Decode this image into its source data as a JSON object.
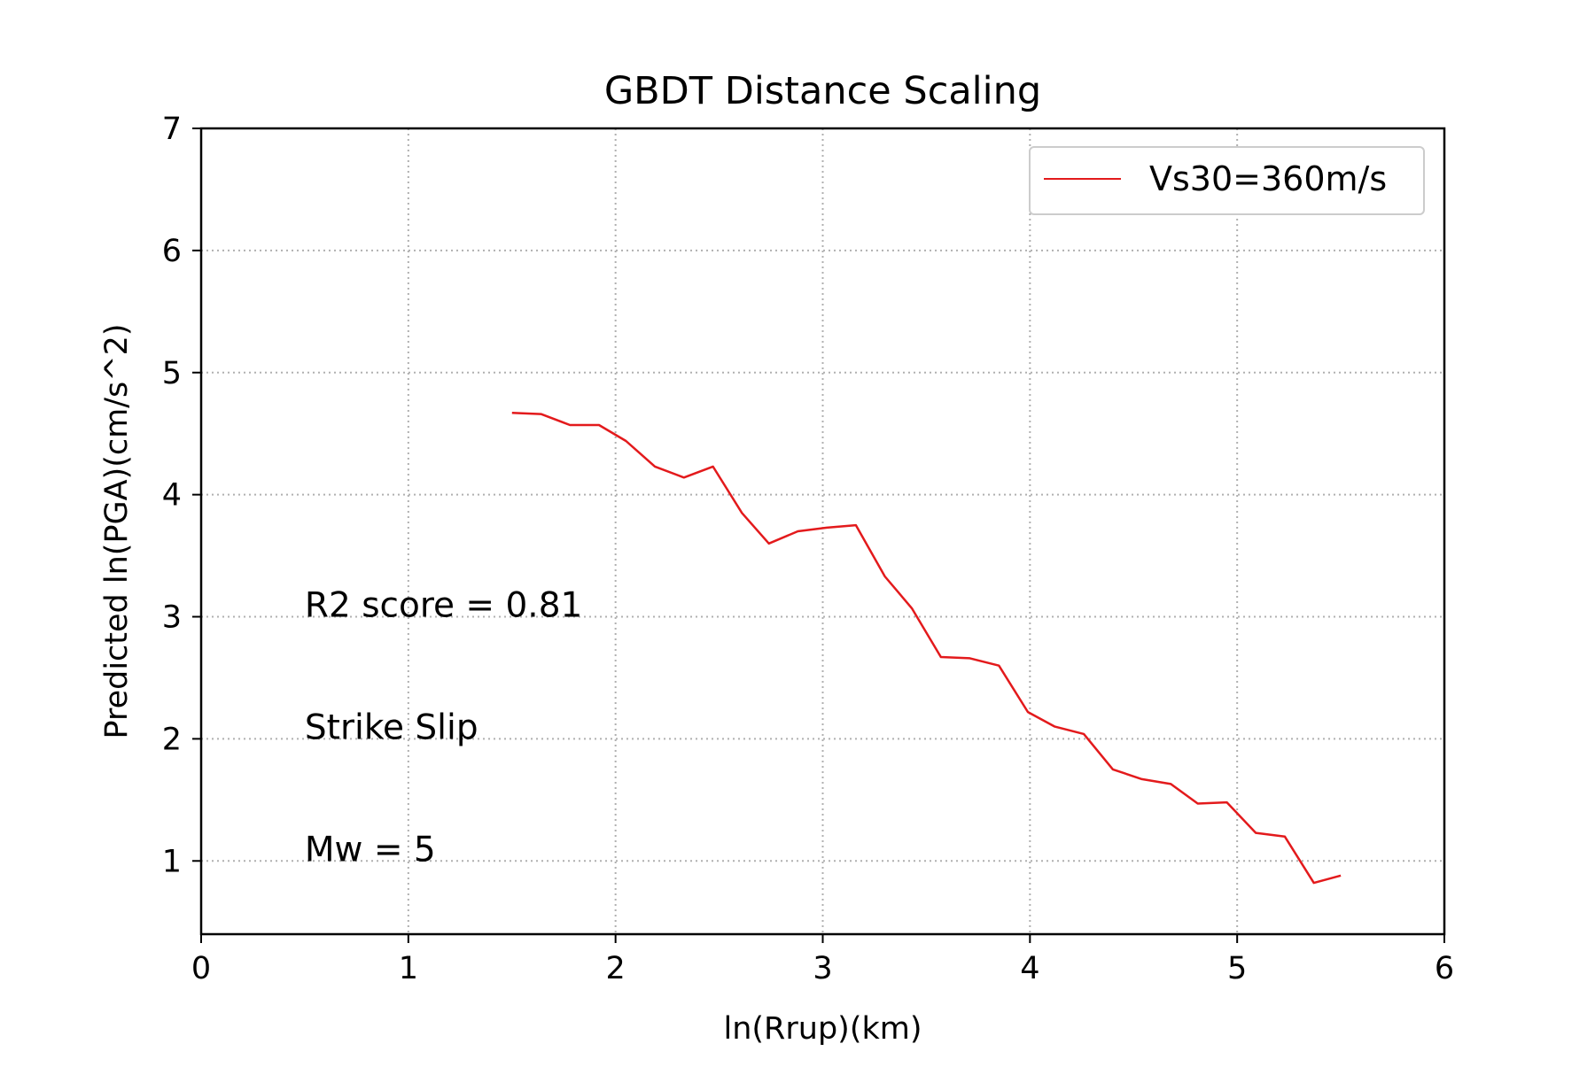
{
  "chart_data": {
    "type": "line",
    "title": "GBDT Distance Scaling",
    "xlabel": "ln(Rrup)(km)",
    "ylabel": "Predicted ln(PGA)(cm/s^2)",
    "xlim": [
      0,
      6
    ],
    "ylim": [
      0.4,
      7
    ],
    "x_ticks": [
      0,
      1,
      2,
      3,
      4,
      5,
      6
    ],
    "y_ticks": [
      1,
      2,
      3,
      4,
      5,
      6,
      7
    ],
    "grid": true,
    "legend_position": "top-right",
    "series": [
      {
        "name": "Vs30=360m/s",
        "color": "#e31a1c",
        "x": [
          1.5,
          1.64,
          1.78,
          1.92,
          2.05,
          2.19,
          2.33,
          2.47,
          2.61,
          2.74,
          2.88,
          3.02,
          3.16,
          3.3,
          3.43,
          3.57,
          3.71,
          3.85,
          3.99,
          4.12,
          4.26,
          4.4,
          4.54,
          4.68,
          4.81,
          4.95,
          5.09,
          5.23,
          5.37,
          5.5
        ],
        "y": [
          4.67,
          4.66,
          4.57,
          4.57,
          4.44,
          4.23,
          4.14,
          4.23,
          3.85,
          3.6,
          3.7,
          3.73,
          3.75,
          3.33,
          3.07,
          2.67,
          2.66,
          2.6,
          2.22,
          2.1,
          2.04,
          1.75,
          1.67,
          1.63,
          1.47,
          1.48,
          1.23,
          1.2,
          0.82,
          0.88
        ]
      }
    ],
    "annotations": [
      {
        "text": "R2 score = 0.81",
        "x": 0.5,
        "y": 3.0
      },
      {
        "text": "Strike Slip",
        "x": 0.5,
        "y": 2.0
      },
      {
        "text": "Mw = 5",
        "x": 0.5,
        "y": 1.0
      }
    ]
  }
}
